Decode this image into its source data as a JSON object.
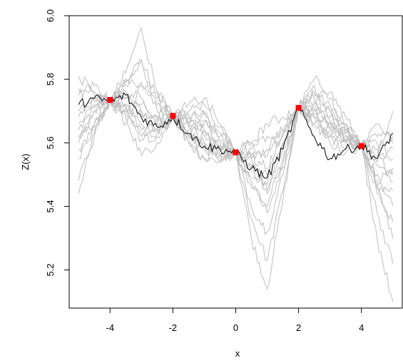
{
  "chart_data": {
    "type": "line",
    "xlabel": "x",
    "ylabel": "Z(x)",
    "xlim": [
      -5.3,
      5.3
    ],
    "ylim": [
      5.08,
      6.0
    ],
    "xticks": [
      "-4",
      "-2",
      "0",
      "2",
      "4"
    ],
    "xtick_values": [
      -4,
      -2,
      0,
      2,
      4
    ],
    "yticks": [
      "5.2",
      "5.4",
      "5.6",
      "5.8",
      "6.0"
    ],
    "ytick_values": [
      5.2,
      5.4,
      5.6,
      5.8,
      6.0
    ],
    "grid": false,
    "colors": {
      "simulations": "#bebebe",
      "realization": "#000000",
      "observations": "#ff0000"
    },
    "observations": {
      "x": [
        -4,
        -2,
        0,
        2,
        4
      ],
      "y": [
        5.735,
        5.685,
        5.57,
        5.71,
        5.59
      ]
    },
    "realization": {
      "x": [
        -5.0,
        -4.5,
        -4.0,
        -3.5,
        -3.0,
        -2.5,
        -2.0,
        -1.5,
        -1.0,
        -0.5,
        0.0,
        0.5,
        1.0,
        1.5,
        2.0,
        2.5,
        3.0,
        3.5,
        4.0,
        4.5,
        5.0
      ],
      "y": [
        5.72,
        5.74,
        5.73,
        5.75,
        5.68,
        5.65,
        5.68,
        5.63,
        5.59,
        5.58,
        5.57,
        5.52,
        5.49,
        5.58,
        5.71,
        5.62,
        5.55,
        5.58,
        5.59,
        5.55,
        5.63
      ]
    },
    "simulations": {
      "x": [
        -5.0,
        -4.5,
        -4.0,
        -3.5,
        -3.0,
        -2.5,
        -2.0,
        -1.5,
        -1.0,
        -0.5,
        0.0,
        0.5,
        1.0,
        1.5,
        2.0,
        2.5,
        3.0,
        3.5,
        4.0,
        4.5,
        5.0
      ],
      "series": [
        {
          "values": [
            5.44,
            5.62,
            5.73,
            5.66,
            5.78,
            5.76,
            5.68,
            5.62,
            5.7,
            5.56,
            5.57,
            5.49,
            5.47,
            5.59,
            5.71,
            5.66,
            5.62,
            5.63,
            5.59,
            5.46,
            5.45
          ]
        },
        {
          "values": [
            5.62,
            5.71,
            5.73,
            5.8,
            5.86,
            5.74,
            5.68,
            5.6,
            5.55,
            5.54,
            5.57,
            5.55,
            5.45,
            5.53,
            5.71,
            5.7,
            5.65,
            5.6,
            5.59,
            5.48,
            5.52
          ]
        },
        {
          "values": [
            5.68,
            5.74,
            5.73,
            5.82,
            5.96,
            5.76,
            5.68,
            5.6,
            5.55,
            5.58,
            5.57,
            5.6,
            5.62,
            5.64,
            5.71,
            5.73,
            5.66,
            5.6,
            5.59,
            5.53,
            5.5
          ]
        },
        {
          "values": [
            5.6,
            5.7,
            5.73,
            5.78,
            5.86,
            5.7,
            5.68,
            5.62,
            5.6,
            5.56,
            5.57,
            5.3,
            5.14,
            5.42,
            5.71,
            5.78,
            5.7,
            5.62,
            5.59,
            5.6,
            5.55
          ]
        },
        {
          "values": [
            5.62,
            5.66,
            5.73,
            5.74,
            5.7,
            5.65,
            5.68,
            5.68,
            5.69,
            5.61,
            5.57,
            5.36,
            5.23,
            5.45,
            5.71,
            5.8,
            5.76,
            5.68,
            5.59,
            5.62,
            5.62
          ]
        },
        {
          "values": [
            5.58,
            5.66,
            5.73,
            5.72,
            5.66,
            5.64,
            5.68,
            5.66,
            5.64,
            5.58,
            5.57,
            5.4,
            5.32,
            5.5,
            5.71,
            5.72,
            5.68,
            5.66,
            5.59,
            5.56,
            5.7
          ]
        },
        {
          "values": [
            5.48,
            5.63,
            5.73,
            5.68,
            5.56,
            5.6,
            5.68,
            5.64,
            5.58,
            5.54,
            5.57,
            5.46,
            5.4,
            5.55,
            5.71,
            5.68,
            5.64,
            5.62,
            5.59,
            5.38,
            5.22
          ]
        },
        {
          "values": [
            5.66,
            5.72,
            5.73,
            5.7,
            5.62,
            5.63,
            5.68,
            5.7,
            5.72,
            5.65,
            5.57,
            5.52,
            5.5,
            5.6,
            5.71,
            5.75,
            5.72,
            5.64,
            5.59,
            5.44,
            5.35
          ]
        },
        {
          "values": [
            5.75,
            5.78,
            5.73,
            5.76,
            5.74,
            5.68,
            5.68,
            5.62,
            5.6,
            5.56,
            5.57,
            5.58,
            5.56,
            5.62,
            5.71,
            5.76,
            5.74,
            5.66,
            5.59,
            5.3,
            5.1
          ]
        },
        {
          "values": [
            5.81,
            5.76,
            5.73,
            5.71,
            5.69,
            5.66,
            5.68,
            5.66,
            5.64,
            5.6,
            5.57,
            5.55,
            5.52,
            5.63,
            5.71,
            5.68,
            5.62,
            5.58,
            5.59,
            5.66,
            5.6
          ]
        },
        {
          "values": [
            5.64,
            5.7,
            5.73,
            5.79,
            5.79,
            5.72,
            5.68,
            5.66,
            5.67,
            5.62,
            5.57,
            5.48,
            5.38,
            5.52,
            5.71,
            5.74,
            5.7,
            5.61,
            5.59,
            5.58,
            5.48
          ]
        },
        {
          "values": [
            5.55,
            5.65,
            5.73,
            5.7,
            5.61,
            5.62,
            5.68,
            5.72,
            5.74,
            5.66,
            5.57,
            5.6,
            5.66,
            5.68,
            5.71,
            5.66,
            5.6,
            5.57,
            5.59,
            5.5,
            5.4
          ]
        },
        {
          "values": [
            5.7,
            5.73,
            5.73,
            5.72,
            5.64,
            5.64,
            5.68,
            5.69,
            5.66,
            5.63,
            5.57,
            5.53,
            5.44,
            5.58,
            5.71,
            5.71,
            5.66,
            5.63,
            5.59,
            5.54,
            5.58
          ]
        },
        {
          "values": [
            5.77,
            5.75,
            5.73,
            5.74,
            5.72,
            5.67,
            5.68,
            5.65,
            5.62,
            5.59,
            5.57,
            5.56,
            5.58,
            5.64,
            5.71,
            5.69,
            5.67,
            5.61,
            5.59,
            5.47,
            5.3
          ]
        }
      ]
    }
  }
}
